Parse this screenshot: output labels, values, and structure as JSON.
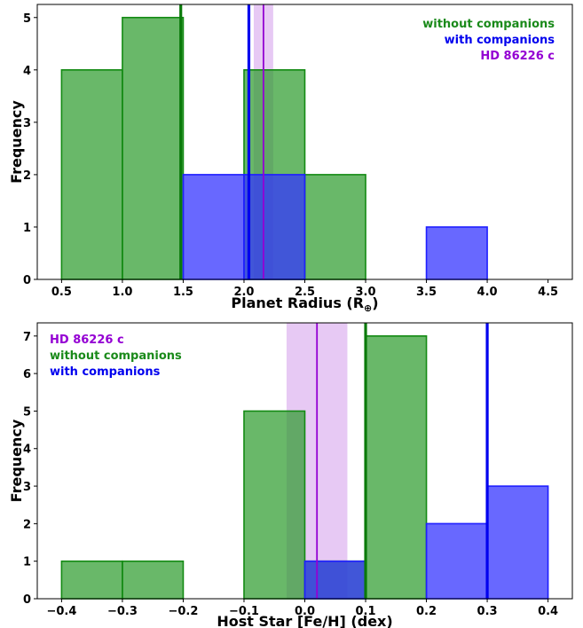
{
  "chart_data": [
    {
      "type": "histogram",
      "xlabel": "Planet Radius (R",
      "xlabel_sub": "⊕",
      "xlabel_close": ")",
      "ylabel": "Frequency",
      "xlim": [
        0.3,
        4.7
      ],
      "ylim": [
        0,
        5.25
      ],
      "xticks": [
        "0.5",
        "1.0",
        "1.5",
        "2.0",
        "2.5",
        "3.0",
        "3.5",
        "4.0",
        "4.5"
      ],
      "xtick_values": [
        0.5,
        1.0,
        1.5,
        2.0,
        2.5,
        3.0,
        3.5,
        4.0,
        4.5
      ],
      "yticks": [
        "0",
        "1",
        "2",
        "3",
        "4",
        "5"
      ],
      "ytick_values": [
        0,
        1,
        2,
        3,
        4,
        5
      ],
      "legend_position": "top-right",
      "series": [
        {
          "name": "without companions",
          "color": "#2a9a2a",
          "bins": [
            [
              0.5,
              1.0,
              4
            ],
            [
              1.0,
              1.5,
              5
            ],
            [
              2.0,
              2.5,
              4
            ],
            [
              2.5,
              3.0,
              2
            ]
          ]
        },
        {
          "name": "with companions",
          "color": "#3333ff",
          "bins": [
            [
              1.5,
              2.0,
              2
            ],
            [
              2.0,
              2.5,
              2
            ],
            [
              3.5,
              4.0,
              1
            ]
          ]
        }
      ],
      "vlines": [
        {
          "series": "without companions",
          "x": 1.48,
          "color": "#0a7a0a"
        },
        {
          "series": "with companions",
          "x": 2.04,
          "color": "#0000ee"
        },
        {
          "series": "HD 86226 c",
          "x": 2.16,
          "color": "#9400d3",
          "band": [
            2.08,
            2.24
          ]
        }
      ],
      "legend": [
        {
          "label": "without companions",
          "color": "#1a8a1a"
        },
        {
          "label": "with companions",
          "color": "#0000ee"
        },
        {
          "label": "HD 86226 c",
          "color": "#9400d3"
        }
      ]
    },
    {
      "type": "histogram",
      "xlabel": "Host Star [Fe/H] (dex)",
      "ylabel": "Frequency",
      "xlim": [
        -0.44,
        0.44
      ],
      "ylim": [
        0,
        7.35
      ],
      "xticks": [
        "−0.4",
        "−0.3",
        "−0.2",
        "−0.1",
        "0.0",
        "0.1",
        "0.2",
        "0.3",
        "0.4"
      ],
      "xtick_values": [
        -0.4,
        -0.3,
        -0.2,
        -0.1,
        0.0,
        0.1,
        0.2,
        0.3,
        0.4
      ],
      "yticks": [
        "0",
        "1",
        "2",
        "3",
        "4",
        "5",
        "6",
        "7"
      ],
      "ytick_values": [
        0,
        1,
        2,
        3,
        4,
        5,
        6,
        7
      ],
      "legend_position": "top-left",
      "series": [
        {
          "name": "without companions",
          "color": "#2a9a2a",
          "bins": [
            [
              -0.4,
              -0.3,
              1
            ],
            [
              -0.3,
              -0.2,
              1
            ],
            [
              -0.1,
              0.0,
              5
            ],
            [
              0.0,
              0.1,
              1
            ],
            [
              0.1,
              0.2,
              7
            ]
          ]
        },
        {
          "name": "with companions",
          "color": "#3333ff",
          "bins": [
            [
              0.0,
              0.1,
              1
            ],
            [
              0.2,
              0.3,
              2
            ],
            [
              0.3,
              0.4,
              3
            ]
          ]
        }
      ],
      "vlines": [
        {
          "series": "without companions",
          "x": 0.1,
          "color": "#0a7a0a"
        },
        {
          "series": "with companions",
          "x": 0.3,
          "color": "#0000ee"
        },
        {
          "series": "HD 86226 c",
          "x": 0.02,
          "color": "#9400d3",
          "band": [
            -0.03,
            0.07
          ]
        }
      ],
      "legend": [
        {
          "label": "HD 86226 c",
          "color": "#9400d3"
        },
        {
          "label": "without companions",
          "color": "#1a8a1a"
        },
        {
          "label": "with companions",
          "color": "#0000ee"
        }
      ]
    }
  ]
}
